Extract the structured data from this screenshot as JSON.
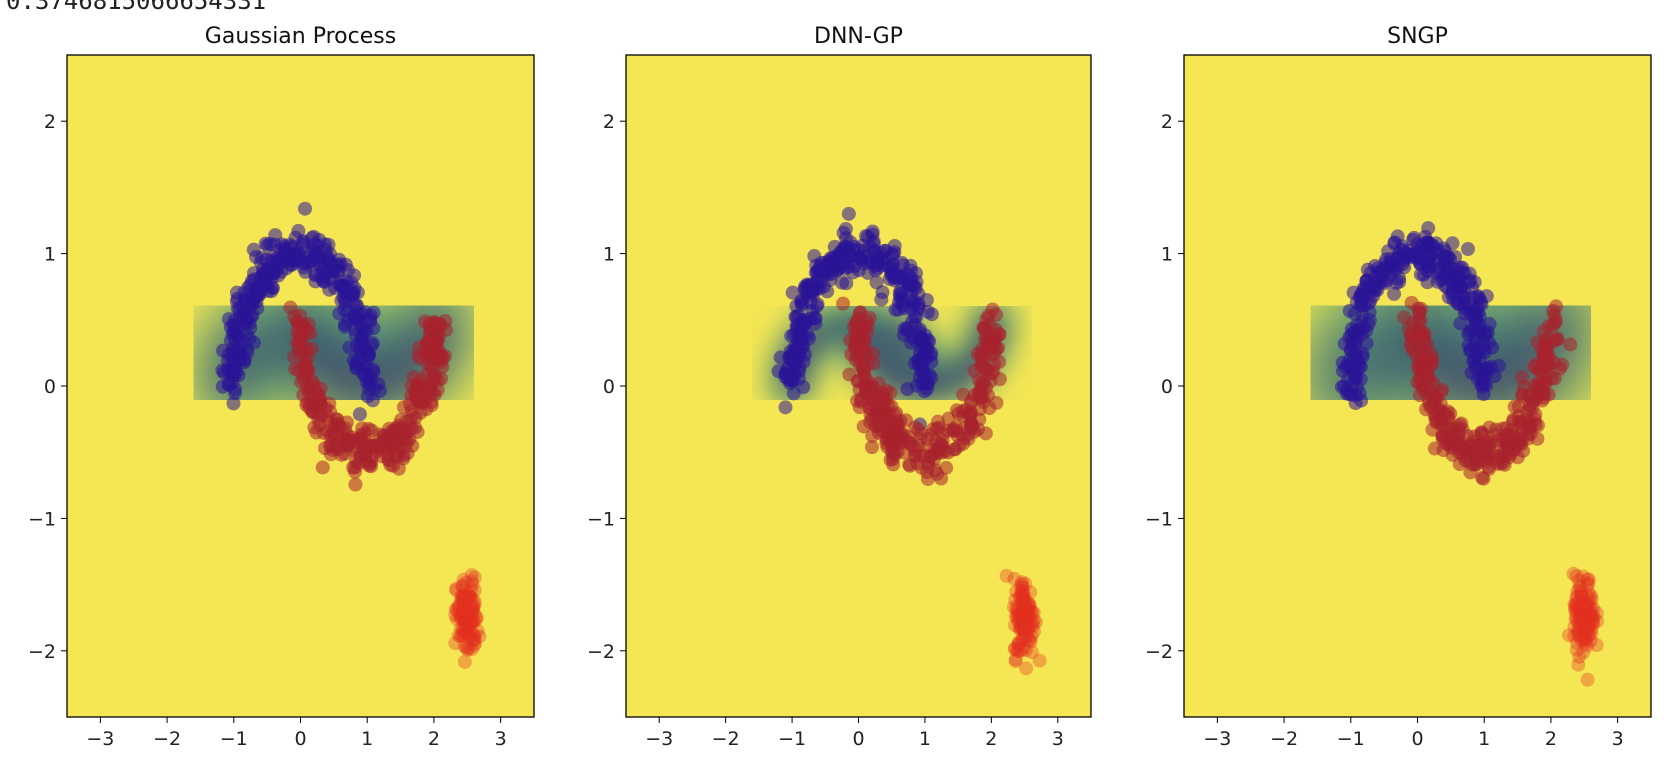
{
  "header": {
    "text": "0.3746815066654331"
  },
  "colors": {
    "background_fill": "#f5e653",
    "moons_class_0": "#2a1497",
    "moons_class_1": "#a8232d",
    "ood_points": "#e3321f"
  },
  "chart_data": [
    {
      "type": "heatmap",
      "title": "Gaussian Process",
      "xlim": [
        -3.5,
        3.5
      ],
      "ylim": [
        -2.5,
        2.5
      ],
      "xticks": [
        -3,
        -2,
        -1,
        0,
        1,
        2,
        3
      ],
      "yticks": [
        -2,
        -1,
        0,
        1,
        2
      ],
      "xtick_labels": [
        "−3",
        "−2",
        "−1",
        "0",
        "1",
        "2",
        "3"
      ],
      "ytick_labels": [
        "−2",
        "−1",
        "0",
        "1",
        "2"
      ],
      "colormap": "viridis",
      "uncertainty_width": 0.6,
      "series": [
        {
          "name": "",
          "kind": "scatter",
          "region": "upper moon",
          "center": [
            0,
            0
          ],
          "radius": 1,
          "angle_range": [
            0,
            180
          ],
          "color": "#2a1497"
        },
        {
          "name": "",
          "kind": "scatter",
          "region": "lower moon",
          "center": [
            1,
            0.5
          ],
          "radius": 1,
          "angle_range": [
            180,
            360
          ],
          "color": "#a8232d"
        },
        {
          "name": "",
          "kind": "scatter",
          "region": "ood cluster",
          "center": [
            2.5,
            -1.75
          ],
          "spread": [
            0.08,
            0.15
          ],
          "color": "#e3321f"
        }
      ]
    },
    {
      "type": "heatmap",
      "title": "DNN-GP",
      "xlim": [
        -3.5,
        3.5
      ],
      "ylim": [
        -2.5,
        2.5
      ],
      "xticks": [
        -3,
        -2,
        -1,
        0,
        1,
        2,
        3
      ],
      "yticks": [
        -2,
        -1,
        0,
        1,
        2
      ],
      "xtick_labels": [
        "−3",
        "−2",
        "−1",
        "0",
        "1",
        "2",
        "3"
      ],
      "ytick_labels": [
        "−2",
        "−1",
        "0",
        "1",
        "2"
      ],
      "colormap": "viridis",
      "uncertainty_width": 0.32,
      "series": [
        {
          "name": "",
          "kind": "scatter",
          "region": "upper moon",
          "center": [
            0,
            0
          ],
          "radius": 1,
          "angle_range": [
            0,
            180
          ],
          "color": "#2a1497"
        },
        {
          "name": "",
          "kind": "scatter",
          "region": "lower moon",
          "center": [
            1,
            0.5
          ],
          "radius": 1,
          "angle_range": [
            180,
            360
          ],
          "color": "#a8232d"
        },
        {
          "name": "",
          "kind": "scatter",
          "region": "ood cluster",
          "center": [
            2.5,
            -1.75
          ],
          "spread": [
            0.08,
            0.15
          ],
          "color": "#e3321f"
        }
      ]
    },
    {
      "type": "heatmap",
      "title": "SNGP",
      "xlim": [
        -3.5,
        3.5
      ],
      "ylim": [
        -2.5,
        2.5
      ],
      "xticks": [
        -3,
        -2,
        -1,
        0,
        1,
        2,
        3
      ],
      "yticks": [
        -2,
        -1,
        0,
        1,
        2
      ],
      "xtick_labels": [
        "−3",
        "−2",
        "−1",
        "0",
        "1",
        "2",
        "3"
      ],
      "ytick_labels": [
        "−2",
        "−1",
        "0",
        "1",
        "2"
      ],
      "colormap": "viridis",
      "uncertainty_width": 0.75,
      "series": [
        {
          "name": "",
          "kind": "scatter",
          "region": "upper moon",
          "center": [
            0,
            0
          ],
          "radius": 1,
          "angle_range": [
            0,
            180
          ],
          "color": "#2a1497"
        },
        {
          "name": "",
          "kind": "scatter",
          "region": "lower moon",
          "center": [
            1,
            0.5
          ],
          "radius": 1,
          "angle_range": [
            180,
            360
          ],
          "color": "#a8232d"
        },
        {
          "name": "",
          "kind": "scatter",
          "region": "ood cluster",
          "center": [
            2.5,
            -1.75
          ],
          "spread": [
            0.08,
            0.15
          ],
          "color": "#e3321f"
        }
      ]
    }
  ]
}
